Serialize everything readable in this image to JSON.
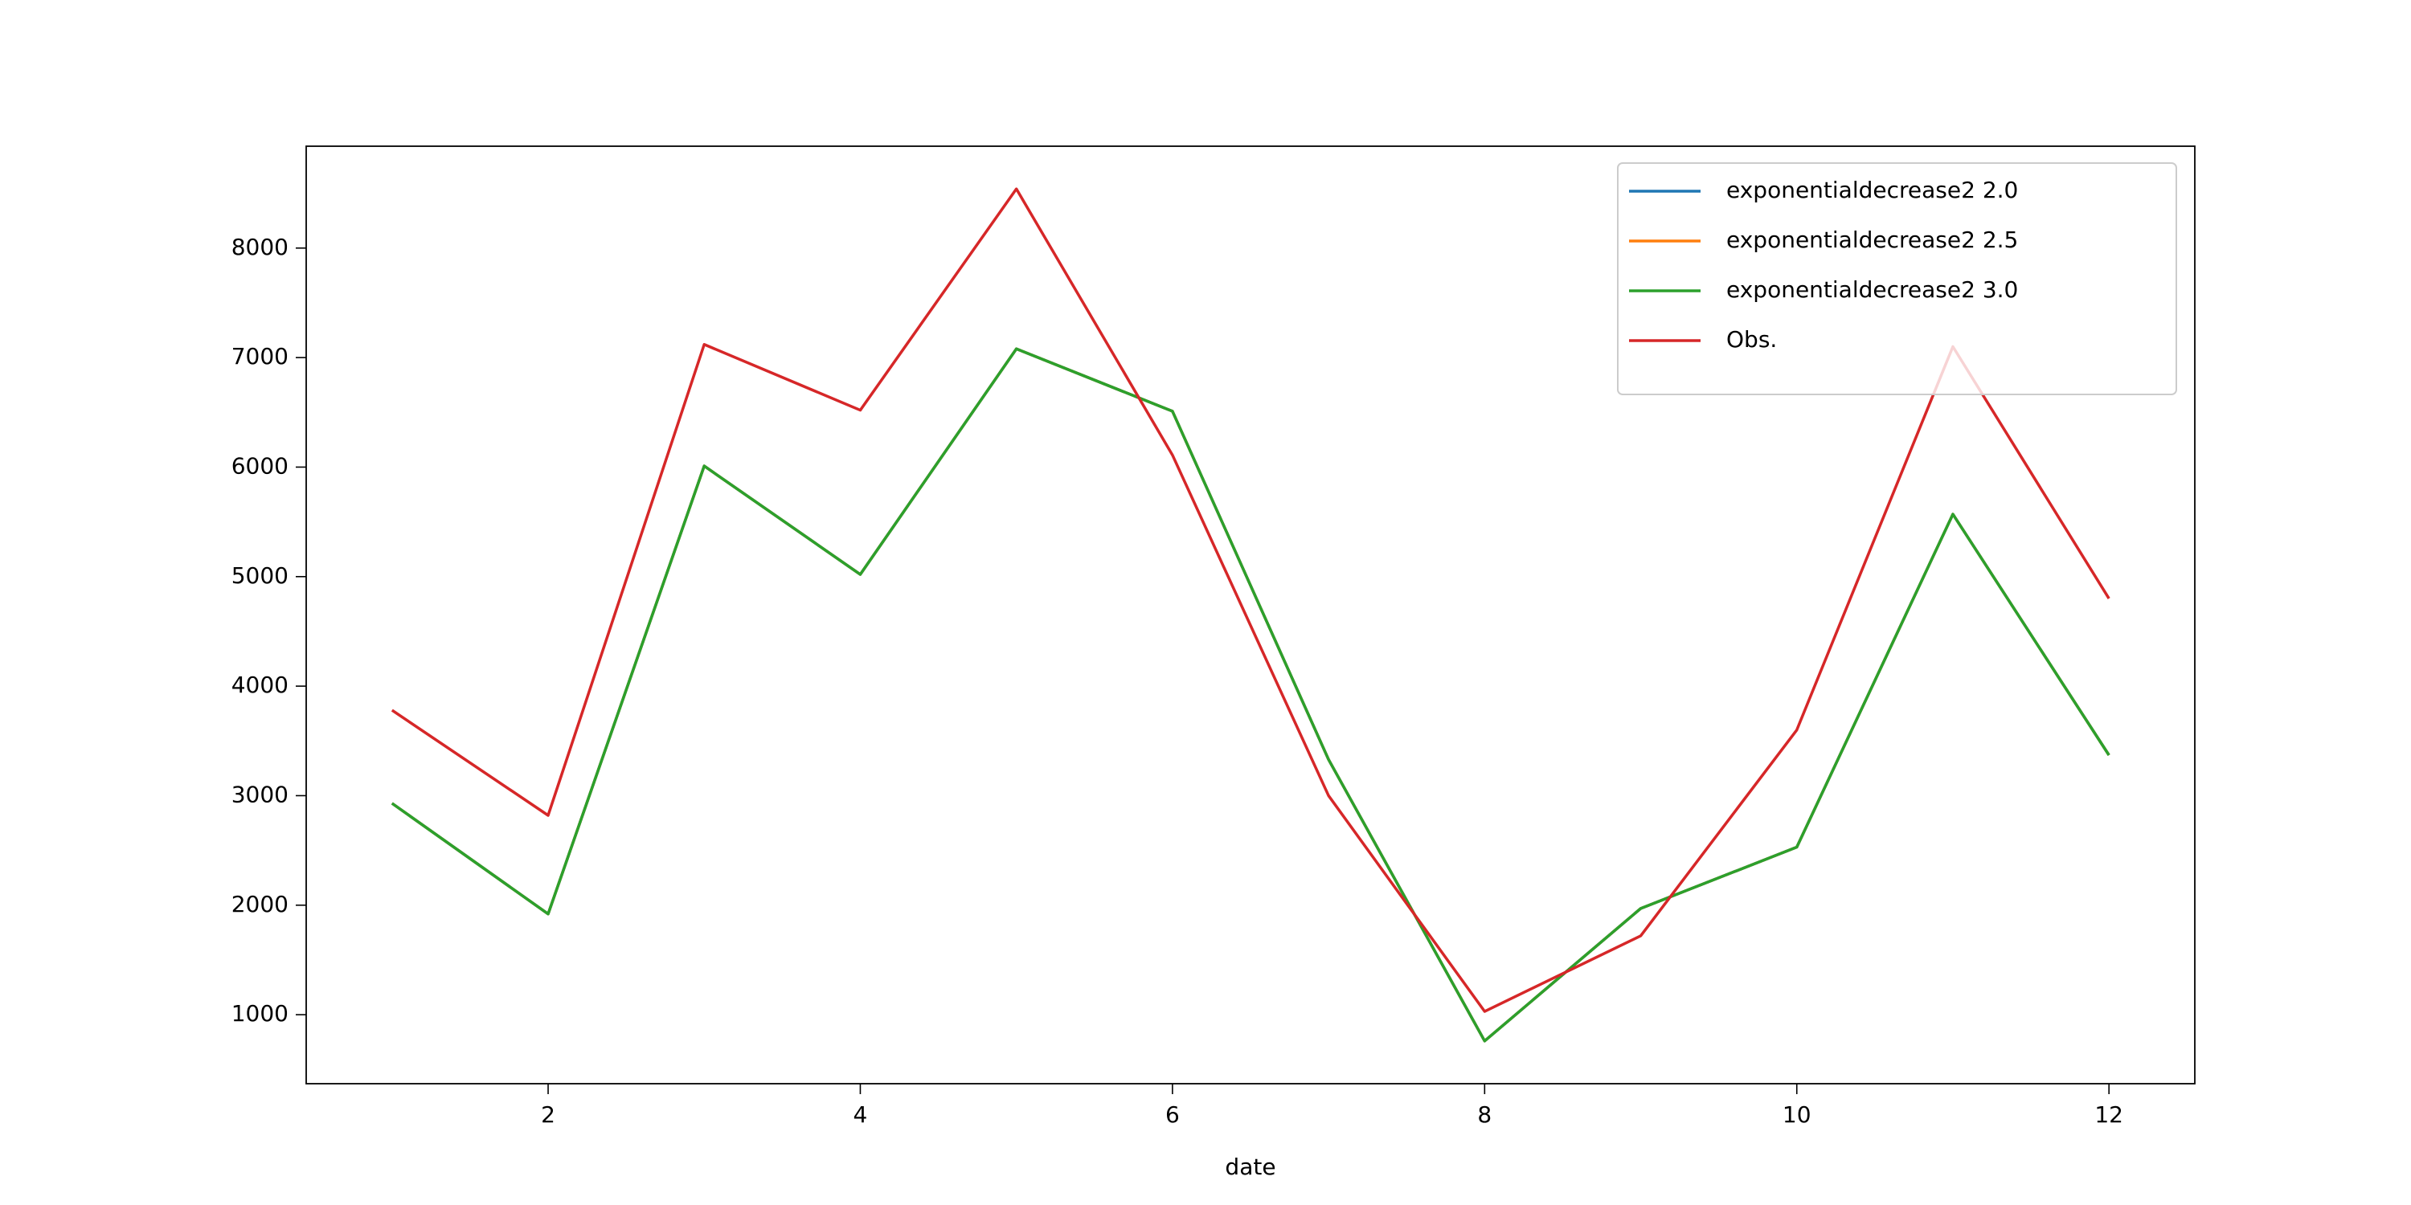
{
  "chart_data": {
    "type": "line",
    "x_label": "date",
    "x": [
      1,
      2,
      3,
      4,
      5,
      6,
      7,
      8,
      9,
      10,
      11,
      12
    ],
    "series": [
      {
        "name": "exponentialdecrease2 2.0",
        "color": "#1f77b4",
        "values": [
          2930,
          1920,
          6010,
          5020,
          7080,
          6510,
          3330,
          760,
          1970,
          2530,
          5570,
          3370
        ]
      },
      {
        "name": "exponentialdecrease2 2.5",
        "color": "#ff7f0e",
        "values": [
          2930,
          1920,
          6010,
          5020,
          7080,
          6510,
          3330,
          760,
          1970,
          2530,
          5570,
          3370
        ]
      },
      {
        "name": "exponentialdecrease2 3.0",
        "color": "#2ca02c",
        "values": [
          2930,
          1920,
          6010,
          5020,
          7080,
          6510,
          3330,
          760,
          1970,
          2530,
          5570,
          3370
        ]
      },
      {
        "name": "Obs.",
        "color": "#d62728",
        "values": [
          3780,
          2820,
          7120,
          6520,
          8540,
          6110,
          3000,
          1030,
          1720,
          3600,
          7100,
          4800
        ]
      }
    ],
    "xlim": [
      0.45,
      12.55
    ],
    "xticks": [
      2,
      4,
      6,
      8,
      10,
      12
    ],
    "ylim": [
      370,
      8930
    ],
    "yticks": [
      1000,
      2000,
      3000,
      4000,
      5000,
      6000,
      7000,
      8000
    ],
    "grid": false,
    "legend": "upper right"
  }
}
